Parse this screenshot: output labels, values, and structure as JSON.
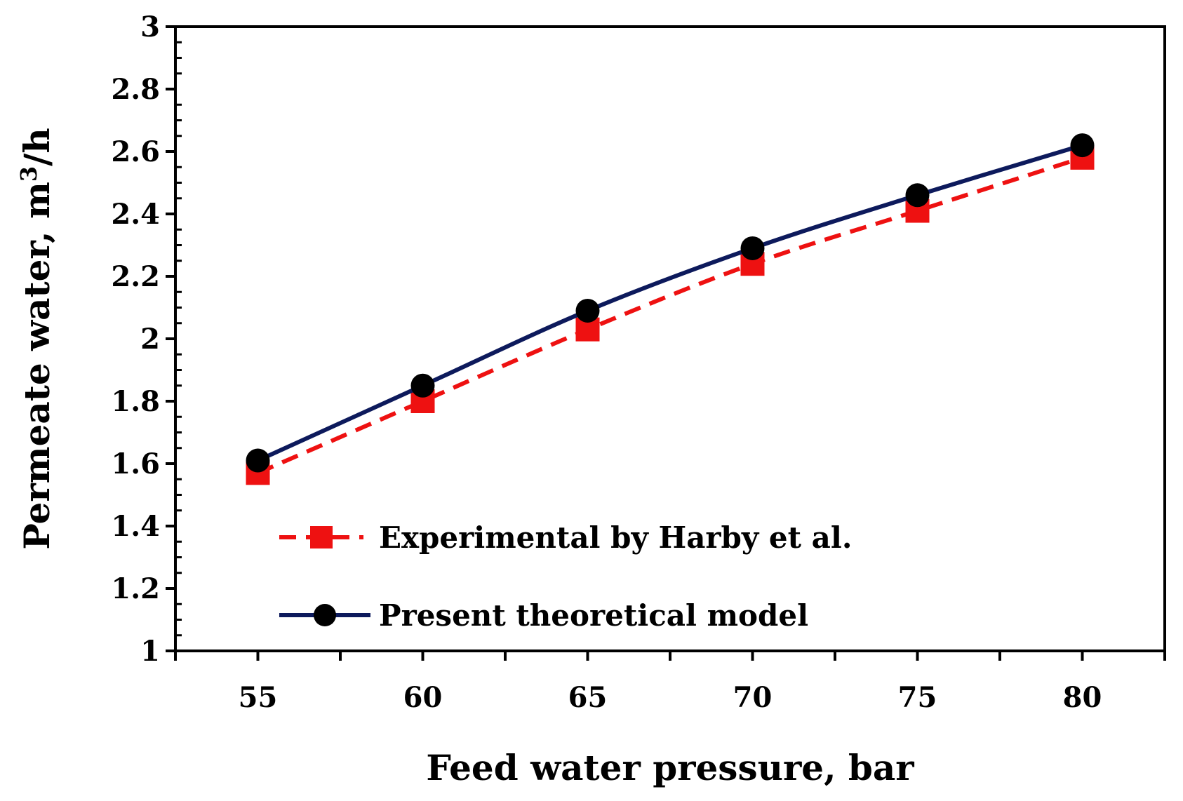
{
  "chart_data": {
    "type": "line",
    "title": "",
    "xlabel": "Feed water pressure, bar",
    "ylabel_main": "Permeate water, m",
    "ylabel_sup": "3",
    "ylabel_tail": "/h",
    "x": [
      55,
      60,
      65,
      70,
      75,
      80
    ],
    "xlim": [
      52.5,
      82.5
    ],
    "ylim": [
      1,
      3
    ],
    "x_ticks": [
      "55",
      "60",
      "65",
      "70",
      "75",
      "80"
    ],
    "y_ticks": [
      "1",
      "1.2",
      "1.4",
      "1.6",
      "1.8",
      "2",
      "2.2",
      "2.4",
      "2.6",
      "2.8",
      "3"
    ],
    "legend_position": "bottom-left",
    "grid": false,
    "series": [
      {
        "name": "Experimental by Harby et al.",
        "values": [
          1.57,
          1.8,
          2.03,
          2.24,
          2.41,
          2.58
        ],
        "color": "#ee1111",
        "line_style": "dashed",
        "marker": "square"
      },
      {
        "name": "Present theoretical model",
        "values": [
          1.61,
          1.85,
          2.09,
          2.29,
          2.46,
          2.62
        ],
        "color": "#0d1a5c",
        "line_style": "solid",
        "marker": "circle"
      }
    ]
  }
}
